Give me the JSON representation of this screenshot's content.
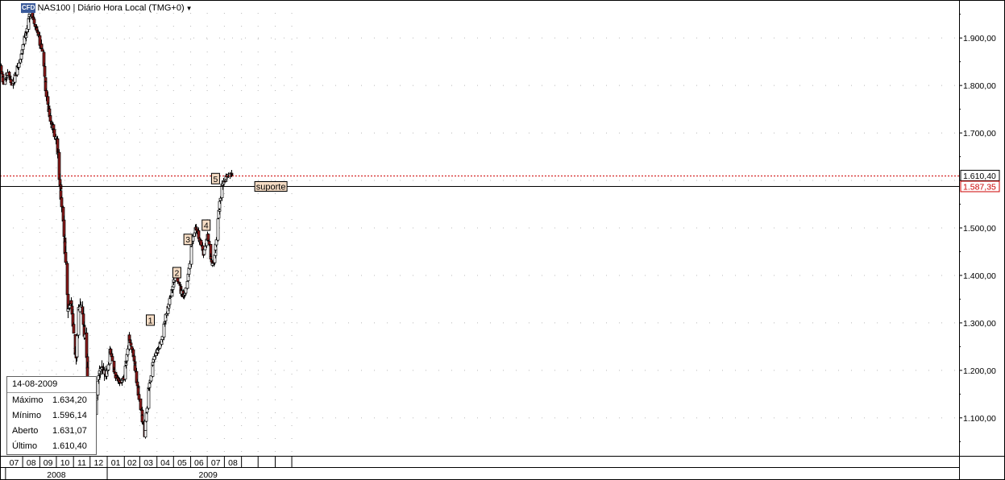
{
  "title": {
    "badge": "CFD",
    "symbol": "NAS100",
    "period_label": "Diário Hora Local (TMG+0)"
  },
  "info_box": {
    "date": "14-08-2009",
    "rows": [
      {
        "label": "Máximo",
        "value": "1.634,20"
      },
      {
        "label": "Mínimo",
        "value": "1.596,14"
      },
      {
        "label": "Aberto",
        "value": "1.631,07"
      },
      {
        "label": "Último",
        "value": "1.610,40"
      }
    ]
  },
  "colors": {
    "up": "#ffffff",
    "down": "#8b1a1a",
    "wick": "#000000",
    "grid": "#b8b8b8",
    "last_price_line": "#cc0000",
    "support_line": "#000000",
    "marker_fill": "#f5dcc4"
  },
  "chart_data": {
    "type": "candlestick",
    "title": "",
    "xlabel": "",
    "ylabel": "",
    "ylim": [
      1020,
      1980
    ],
    "y_ticks": [
      {
        "value": 1100,
        "label": "1.100,00"
      },
      {
        "value": 1200,
        "label": "1.200,00"
      },
      {
        "value": 1300,
        "label": "1.300,00"
      },
      {
        "value": 1400,
        "label": "1.400,00"
      },
      {
        "value": 1500,
        "label": "1.500,00"
      },
      {
        "value": 1600,
        "label": "1.600,00"
      },
      {
        "value": 1700,
        "label": "1.700,00"
      },
      {
        "value": 1800,
        "label": "1.800,00"
      },
      {
        "value": 1900,
        "label": "1.900,00"
      }
    ],
    "months": [
      {
        "label": "07",
        "start": "2008-07-01"
      },
      {
        "label": "08",
        "start": "2008-08-01"
      },
      {
        "label": "09",
        "start": "2008-09-01"
      },
      {
        "label": "10",
        "start": "2008-10-01"
      },
      {
        "label": "11",
        "start": "2008-11-01"
      },
      {
        "label": "12",
        "start": "2008-12-01"
      },
      {
        "label": "01",
        "start": "2009-01-01"
      },
      {
        "label": "02",
        "start": "2009-02-01"
      },
      {
        "label": "03",
        "start": "2009-03-01"
      },
      {
        "label": "04",
        "start": "2009-04-01"
      },
      {
        "label": "05",
        "start": "2009-05-01"
      },
      {
        "label": "06",
        "start": "2009-06-01"
      },
      {
        "label": "07",
        "start": "2009-07-01"
      },
      {
        "label": "08",
        "start": "2009-08-01"
      },
      {
        "label": "",
        "start": "2009-09-01"
      },
      {
        "label": "",
        "start": "2009-10-01"
      },
      {
        "label": "",
        "start": "2009-11-01"
      },
      {
        "label": "",
        "start": "2009-12-01"
      }
    ],
    "years": [
      {
        "label": "2008",
        "start": "2008-07-01",
        "end": "2009-01-01"
      },
      {
        "label": "2009",
        "start": "2009-01-01",
        "end": "2010-01-01"
      }
    ],
    "x_start": "2008-06-21",
    "price_lines": [
      {
        "name": "last",
        "value": 1610.4,
        "label": "1.610,40",
        "style": "dotted"
      },
      {
        "name": "support",
        "value": 1587.35,
        "label": "1.587,35",
        "style": "solid",
        "tag": "suporte",
        "tag_date": "2009-09-25"
      }
    ],
    "wave_markers": [
      {
        "label": "1",
        "date": "2009-03-20",
        "value": 1305
      },
      {
        "label": "2",
        "date": "2009-05-07",
        "value": 1405
      },
      {
        "label": "3",
        "date": "2009-05-27",
        "value": 1475
      },
      {
        "label": "4",
        "date": "2009-06-29",
        "value": 1505
      },
      {
        "label": "5",
        "date": "2009-07-16",
        "value": 1603
      }
    ],
    "anchors": [
      [
        "2008-06-21",
        1840
      ],
      [
        "2008-06-28",
        1800
      ],
      [
        "2008-07-05",
        1835
      ],
      [
        "2008-07-12",
        1790
      ],
      [
        "2008-07-19",
        1830
      ],
      [
        "2008-07-26",
        1845
      ],
      [
        "2008-08-02",
        1890
      ],
      [
        "2008-08-09",
        1925
      ],
      [
        "2008-08-14",
        1960
      ],
      [
        "2008-08-22",
        1930
      ],
      [
        "2008-08-30",
        1900
      ],
      [
        "2008-09-06",
        1865
      ],
      [
        "2008-09-12",
        1780
      ],
      [
        "2008-09-19",
        1730
      ],
      [
        "2008-09-26",
        1700
      ],
      [
        "2008-10-01",
        1680
      ],
      [
        "2008-10-08",
        1575
      ],
      [
        "2008-10-14",
        1490
      ],
      [
        "2008-10-21",
        1330
      ],
      [
        "2008-10-26",
        1360
      ],
      [
        "2008-10-31",
        1285
      ],
      [
        "2008-11-05",
        1215
      ],
      [
        "2008-11-10",
        1335
      ],
      [
        "2008-11-14",
        1345
      ],
      [
        "2008-11-21",
        1270
      ],
      [
        "2008-11-26",
        1190
      ],
      [
        "2008-12-02",
        1100
      ],
      [
        "2008-12-07",
        1070
      ],
      [
        "2008-12-14",
        1170
      ],
      [
        "2008-12-21",
        1220
      ],
      [
        "2008-12-28",
        1180
      ],
      [
        "2009-01-06",
        1240
      ],
      [
        "2009-01-14",
        1190
      ],
      [
        "2009-01-22",
        1175
      ],
      [
        "2009-01-30",
        1180
      ],
      [
        "2009-02-09",
        1270
      ],
      [
        "2009-02-17",
        1225
      ],
      [
        "2009-02-25",
        1160
      ],
      [
        "2009-03-03",
        1110
      ],
      [
        "2009-03-09",
        1065
      ],
      [
        "2009-03-16",
        1160
      ],
      [
        "2009-03-24",
        1220
      ],
      [
        "2009-04-01",
        1240
      ],
      [
        "2009-04-09",
        1265
      ],
      [
        "2009-04-17",
        1320
      ],
      [
        "2009-04-25",
        1355
      ],
      [
        "2009-05-03",
        1410
      ],
      [
        "2009-05-09",
        1385
      ],
      [
        "2009-05-17",
        1355
      ],
      [
        "2009-05-25",
        1380
      ],
      [
        "2009-06-02",
        1470
      ],
      [
        "2009-06-10",
        1500
      ],
      [
        "2009-06-18",
        1470
      ],
      [
        "2009-06-24",
        1445
      ],
      [
        "2009-07-01",
        1485
      ],
      [
        "2009-07-07",
        1430
      ],
      [
        "2009-07-13",
        1425
      ],
      [
        "2009-07-20",
        1520
      ],
      [
        "2009-07-25",
        1580
      ],
      [
        "2009-08-01",
        1605
      ],
      [
        "2009-08-07",
        1615
      ],
      [
        "2009-08-14",
        1610
      ]
    ]
  }
}
